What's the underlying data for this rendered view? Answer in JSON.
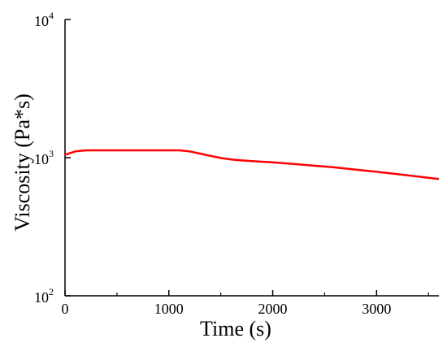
{
  "chart_data": {
    "type": "line",
    "title": "",
    "xlabel": "Time (s)",
    "ylabel": "Viscosity (Pa*s)",
    "xlim": [
      0,
      3600
    ],
    "ylim": [
      100,
      10000
    ],
    "y_scale": "log",
    "grid": false,
    "legend": "none",
    "x_ticks": [
      {
        "value": 0,
        "label": "0"
      },
      {
        "value": 1000,
        "label": "1000"
      },
      {
        "value": 2000,
        "label": "2000"
      },
      {
        "value": 3000,
        "label": "3000"
      }
    ],
    "y_ticks": [
      {
        "value": 100,
        "base": "10",
        "exp": "2"
      },
      {
        "value": 1000,
        "base": "10",
        "exp": "3"
      },
      {
        "value": 10000,
        "base": "10",
        "exp": "4"
      }
    ],
    "series": [
      {
        "color": "#ff0000",
        "x": [
          0,
          100,
          200,
          400,
          600,
          800,
          1000,
          1100,
          1200,
          1300,
          1400,
          1500,
          1600,
          1700,
          1800,
          2000,
          2200,
          2400,
          2600,
          2800,
          3000,
          3200,
          3400,
          3600
        ],
        "y": [
          1050,
          1110,
          1130,
          1130,
          1130,
          1130,
          1130,
          1130,
          1110,
          1070,
          1030,
          995,
          970,
          955,
          945,
          925,
          900,
          875,
          850,
          820,
          790,
          760,
          730,
          700
        ]
      }
    ]
  }
}
